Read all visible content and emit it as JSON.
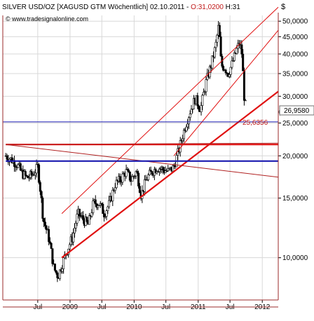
{
  "header": {
    "title_prefix": "SILVER USD/OZ [XAGUSD GTM  Wöchentlich] 02.10.2011 - ",
    "title_o": "O:31,0200",
    "title_h": " H:31",
    "url": "www.tradesignalonline.com",
    "currency_label": "$"
  },
  "colors": {
    "background": "#ffffff",
    "frame": "#9b2b2b",
    "candle_up": "#ffffff",
    "candle_down": "#000000",
    "red_line": "#e01010",
    "blue_line": "#1a1ab0",
    "dark_red_line": "#b02020",
    "price_label_red": "#c01818"
  },
  "chart_data": {
    "type": "candlestick",
    "instrument": "SILVER USD/OZ [XAGUSD GTM  Wöchentlich]",
    "date": "02.10.2011",
    "open": "31,0200",
    "y_scale": "log",
    "ylim": [
      7.5,
      52
    ],
    "y_ticks": [
      "50,0000",
      "45,0000",
      "40,0000",
      "35,0000",
      "30,0000",
      "25,0000",
      "20,0000",
      "15,0000",
      "10,0000"
    ],
    "y_tick_values": [
      50,
      45,
      40,
      35,
      30,
      25,
      20,
      15,
      10
    ],
    "x_ticks": [
      "Jul",
      "2009",
      "Jul",
      "2010",
      "Jul",
      "2011",
      "Jul",
      "2012"
    ],
    "x_tick_dates": [
      "2008-07-01",
      "2009-01-01",
      "2009-07-01",
      "2010-01-01",
      "2010-07-01",
      "2011-01-01",
      "2011-07-01",
      "2012-01-01"
    ],
    "xlim": [
      "2007-12-15",
      "2012-04-01"
    ],
    "last_price": "26,9580",
    "last_price_value": 26.958,
    "horizontal_level_label": "25,6356",
    "horizontal_level_value": 25.6356,
    "close_path": [
      [
        "2008-01-01",
        20.0
      ],
      [
        "2008-02-01",
        19.5
      ],
      [
        "2008-03-01",
        19.0
      ],
      [
        "2008-04-01",
        17.8
      ],
      [
        "2008-05-01",
        17.2
      ],
      [
        "2008-06-01",
        17.6
      ],
      [
        "2008-07-01",
        18.5
      ],
      [
        "2008-08-01",
        13.0
      ],
      [
        "2008-09-01",
        11.5
      ],
      [
        "2008-10-01",
        9.3
      ],
      [
        "2008-10-25",
        8.8
      ],
      [
        "2008-11-15",
        9.5
      ],
      [
        "2008-12-15",
        10.5
      ],
      [
        "2009-01-15",
        11.5
      ],
      [
        "2009-02-15",
        13.5
      ],
      [
        "2009-03-15",
        13.0
      ],
      [
        "2009-04-15",
        12.5
      ],
      [
        "2009-05-15",
        14.5
      ],
      [
        "2009-06-15",
        14.5
      ],
      [
        "2009-07-15",
        13.5
      ],
      [
        "2009-08-15",
        14.5
      ],
      [
        "2009-09-15",
        16.5
      ],
      [
        "2009-10-15",
        17.0
      ],
      [
        "2009-11-15",
        18.0
      ],
      [
        "2009-12-15",
        17.0
      ],
      [
        "2010-01-15",
        18.0
      ],
      [
        "2010-02-10",
        15.3
      ],
      [
        "2010-03-15",
        17.2
      ],
      [
        "2010-04-15",
        18.0
      ],
      [
        "2010-05-15",
        18.5
      ],
      [
        "2010-06-15",
        18.2
      ],
      [
        "2010-07-15",
        18.0
      ],
      [
        "2010-08-15",
        18.5
      ],
      [
        "2010-09-15",
        21.0
      ],
      [
        "2010-10-15",
        24.0
      ],
      [
        "2010-11-15",
        27.0
      ],
      [
        "2010-12-15",
        29.5
      ],
      [
        "2011-01-15",
        27.5
      ],
      [
        "2011-02-15",
        33.0
      ],
      [
        "2011-03-15",
        37.0
      ],
      [
        "2011-04-10",
        42.0
      ],
      [
        "2011-04-28",
        48.5
      ],
      [
        "2011-05-12",
        37.0
      ],
      [
        "2011-06-01",
        36.5
      ],
      [
        "2011-06-20",
        35.0
      ],
      [
        "2011-07-10",
        37.0
      ],
      [
        "2011-08-01",
        40.0
      ],
      [
        "2011-08-22",
        43.0
      ],
      [
        "2011-09-05",
        41.0
      ],
      [
        "2011-09-20",
        30.0
      ],
      [
        "2011-10-02",
        26.958
      ]
    ],
    "lines": [
      {
        "name": "",
        "color": "red",
        "width": 2.2,
        "from": [
          "2008-11-15",
          10.0
        ],
        "to": [
          "2012-04-01",
          31.0
        ]
      },
      {
        "name": "",
        "color": "red",
        "width": 1,
        "from": [
          "2008-11-15",
          13.5
        ],
        "to": [
          "2012-04-01",
          55.0
        ]
      },
      {
        "name": "",
        "color": "red",
        "width": 1,
        "from": [
          "2010-08-15",
          20.0
        ],
        "to": [
          "2012-04-01",
          47.0
        ]
      },
      {
        "name": "",
        "color": "red",
        "width": 2.2,
        "from": [
          "2008-01-01",
          21.6
        ],
        "to": [
          "2012-04-01",
          21.6
        ]
      },
      {
        "name": "",
        "color": "darkred",
        "width": 1,
        "from": [
          "2008-01-01",
          21.6
        ],
        "to": [
          "2012-04-01",
          17.3
        ]
      },
      {
        "name": "",
        "color": "darkred",
        "width": 1,
        "from": [
          "2008-01-01",
          21.6
        ],
        "to": [
          "2012-04-01",
          21.8
        ]
      },
      {
        "name": "",
        "color": "blue",
        "width": 2.2,
        "from": [
          "2008-01-01",
          19.3
        ],
        "to": [
          "2012-04-01",
          19.3
        ]
      },
      {
        "name": "",
        "color": "blue",
        "width": 1,
        "from": [
          "2007-12-15",
          25.2
        ],
        "to": [
          "2012-04-01",
          25.2
        ]
      }
    ]
  }
}
